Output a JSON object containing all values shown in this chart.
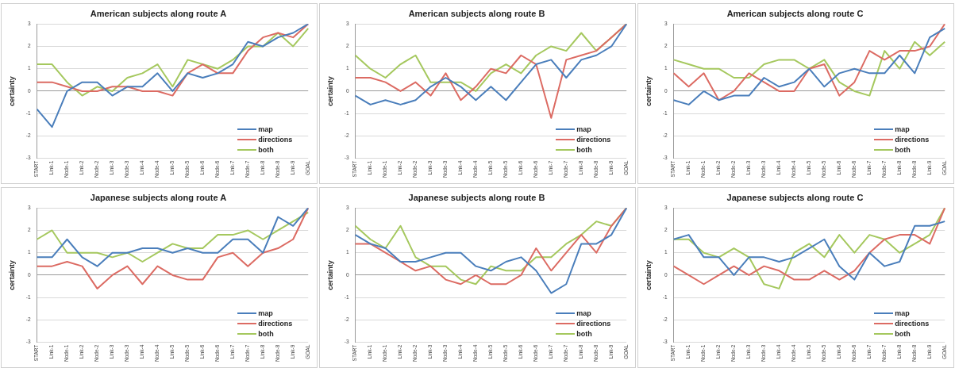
{
  "chart_data": [
    {
      "type": "line",
      "title": "American subjects along route A",
      "ylabel": "certainty",
      "categories": [
        "START",
        "Link-1",
        "Node-1",
        "Link-2",
        "Node-2",
        "Link-3",
        "Node-3",
        "Link-4",
        "Node-4",
        "Link-5",
        "Node-5",
        "Link-6",
        "Node-6",
        "Link-7",
        "Node-7",
        "Link-8",
        "Node-8",
        "Link-9",
        "GOAL"
      ],
      "ylim": [
        -3,
        3
      ],
      "yticks": [
        -3,
        -2,
        -1,
        0,
        1,
        2,
        3
      ],
      "grid": "y",
      "legend": "bottom right",
      "series": [
        {
          "name": "map",
          "color": "#4a7ebb",
          "values": [
            -0.8,
            -1.6,
            0,
            0.4,
            0.4,
            -0.2,
            0.2,
            0.2,
            0.8,
            0,
            0.8,
            0.6,
            0.8,
            1.2,
            2.2,
            2,
            2.4,
            2.6,
            3
          ]
        },
        {
          "name": "directions",
          "color": "#dc6b63",
          "values": [
            0.4,
            0.4,
            0.2,
            0,
            0,
            0.2,
            0.2,
            0,
            0,
            -0.2,
            0.8,
            1.2,
            0.8,
            0.8,
            1.8,
            2.4,
            2.6,
            2.4,
            3
          ]
        },
        {
          "name": "both",
          "color": "#a5c85e",
          "values": [
            1.2,
            1.2,
            0.4,
            -0.2,
            0.2,
            0,
            0.6,
            0.8,
            1.2,
            0.2,
            1.4,
            1.2,
            1,
            1.4,
            2,
            2,
            2.6,
            2,
            2.8
          ]
        }
      ]
    },
    {
      "type": "line",
      "title": "American subjects along route B",
      "ylabel": "certainty",
      "categories": [
        "START",
        "Link-1",
        "Node-1",
        "Link-2",
        "Node-2",
        "Link-3",
        "Node-3",
        "Link-4",
        "Node-4",
        "Link-5",
        "Node-5",
        "Link-6",
        "Node-6",
        "Link-7",
        "Node-7",
        "Link-8",
        "Node-8",
        "Link-9",
        "GOAL"
      ],
      "ylim": [
        -3,
        3
      ],
      "yticks": [
        -3,
        -2,
        -1,
        0,
        1,
        2,
        3
      ],
      "grid": "y",
      "legend": "bottom right",
      "series": [
        {
          "name": "map",
          "color": "#4a7ebb",
          "values": [
            -0.2,
            -0.6,
            -0.4,
            -0.6,
            -0.4,
            0.2,
            0.6,
            0.2,
            -0.4,
            0.2,
            -0.4,
            0.4,
            1.2,
            1.4,
            0.6,
            1.4,
            1.6,
            2,
            3
          ]
        },
        {
          "name": "directions",
          "color": "#dc6b63",
          "values": [
            0.6,
            0.6,
            0.4,
            0,
            0.4,
            -0.2,
            0.8,
            -0.4,
            0.2,
            1,
            0.8,
            1.6,
            1.2,
            -1.2,
            1.4,
            1.6,
            1.8,
            2.4,
            3
          ]
        },
        {
          "name": "both",
          "color": "#a5c85e",
          "values": [
            1.6,
            1,
            0.6,
            1.2,
            1.6,
            0.4,
            0.4,
            0.4,
            0,
            0.8,
            1.2,
            0.8,
            1.6,
            2,
            1.8,
            2.6,
            1.8,
            2.4,
            3
          ]
        }
      ]
    },
    {
      "type": "line",
      "title": "American subjects along route C",
      "ylabel": "certainty",
      "categories": [
        "START",
        "Link-1",
        "Node-1",
        "Link-2",
        "Node-2",
        "Link-3",
        "Node-3",
        "Link-4",
        "Node-4",
        "Link-5",
        "Node-5",
        "Link-6",
        "Node-6",
        "Link-7",
        "Node-7",
        "Link-8",
        "Node-8",
        "Link-9",
        "GOAL"
      ],
      "ylim": [
        -3,
        3
      ],
      "yticks": [
        -3,
        -2,
        -1,
        0,
        1,
        2,
        3
      ],
      "grid": "y",
      "legend": "bottom right",
      "series": [
        {
          "name": "map",
          "color": "#4a7ebb",
          "values": [
            -0.4,
            -0.6,
            0,
            -0.4,
            -0.2,
            -0.2,
            0.6,
            0.2,
            0.4,
            1,
            0.2,
            0.8,
            1,
            0.8,
            0.8,
            1.6,
            0.8,
            2.4,
            2.8
          ]
        },
        {
          "name": "directions",
          "color": "#dc6b63",
          "values": [
            0.8,
            0.2,
            0.8,
            -0.4,
            0,
            0.8,
            0.4,
            0,
            0,
            1,
            1.2,
            -0.2,
            0.4,
            1.8,
            1.4,
            1.8,
            1.8,
            2,
            3
          ]
        },
        {
          "name": "both",
          "color": "#a5c85e",
          "values": [
            1.4,
            1.2,
            1,
            1,
            0.6,
            0.6,
            1.2,
            1.4,
            1.4,
            1,
            1.4,
            0.4,
            0,
            -0.2,
            1.8,
            1,
            2.2,
            1.6,
            2.2
          ]
        }
      ]
    },
    {
      "type": "line",
      "title": "Japanese subjects along route A",
      "ylabel": "certainty",
      "categories": [
        "START",
        "Link-1",
        "Node-1",
        "Link-2",
        "Node-2",
        "Link-3",
        "Node-3",
        "Link-4",
        "Node-4",
        "Link-5",
        "Node-5",
        "Link-6",
        "Node-6",
        "Link-7",
        "Node-7",
        "Link-8",
        "Node-8",
        "Link-9",
        "GOAL"
      ],
      "ylim": [
        -3,
        3
      ],
      "yticks": [
        -3,
        -2,
        -1,
        0,
        1,
        2,
        3
      ],
      "grid": "y",
      "legend": "bottom right",
      "series": [
        {
          "name": "map",
          "color": "#4a7ebb",
          "values": [
            0.8,
            0.8,
            1.6,
            0.8,
            0.4,
            1,
            1,
            1.2,
            1.2,
            1,
            1.2,
            1,
            1,
            1.6,
            1.6,
            1,
            2.6,
            2.2,
            3
          ]
        },
        {
          "name": "directions",
          "color": "#dc6b63",
          "values": [
            0.4,
            0.4,
            0.6,
            0.4,
            -0.6,
            0,
            0.4,
            -0.4,
            0.4,
            0,
            -0.2,
            -0.2,
            0.8,
            1,
            0.4,
            1,
            1.2,
            1.6,
            3
          ]
        },
        {
          "name": "both",
          "color": "#a5c85e",
          "values": [
            1.6,
            2,
            1,
            1,
            1,
            0.8,
            1,
            0.6,
            1,
            1.4,
            1.2,
            1.2,
            1.8,
            1.8,
            2,
            1.6,
            2,
            2.4,
            2.8
          ]
        }
      ]
    },
    {
      "type": "line",
      "title": "Japanese subjects along route B",
      "ylabel": "certainty",
      "categories": [
        "START",
        "Link-1",
        "Node-1",
        "Link-2",
        "Node-2",
        "Link-3",
        "Node-3",
        "Link-4",
        "Node-4",
        "Link-5",
        "Node-5",
        "Link-6",
        "Node-6",
        "Link-7",
        "Node-7",
        "Link-8",
        "Node-8",
        "Link-9",
        "GOAL"
      ],
      "ylim": [
        -3,
        3
      ],
      "yticks": [
        -3,
        -2,
        -1,
        0,
        1,
        2,
        3
      ],
      "grid": "y",
      "legend": "bottom right",
      "series": [
        {
          "name": "map",
          "color": "#4a7ebb",
          "values": [
            1.8,
            1.4,
            1.2,
            0.6,
            0.6,
            0.8,
            1,
            1,
            0.4,
            0.2,
            0.6,
            0.8,
            0.2,
            -0.8,
            -0.4,
            1.4,
            1.4,
            1.8,
            3
          ]
        },
        {
          "name": "directions",
          "color": "#dc6b63",
          "values": [
            1.4,
            1.4,
            1,
            0.6,
            0.2,
            0.4,
            -0.2,
            -0.4,
            0,
            -0.4,
            -0.4,
            0,
            1.2,
            0.2,
            1,
            1.8,
            1,
            2.2,
            3
          ]
        },
        {
          "name": "both",
          "color": "#a5c85e",
          "values": [
            2.2,
            1.6,
            1.2,
            2.2,
            0.8,
            0.4,
            0.4,
            -0.2,
            -0.4,
            0.4,
            0.2,
            0.2,
            0.8,
            0.8,
            1.4,
            1.8,
            2.4,
            2.2,
            3
          ]
        }
      ]
    },
    {
      "type": "line",
      "title": "Japanese subjects along route C",
      "ylabel": "certainty",
      "categories": [
        "START",
        "Link-1",
        "Node-1",
        "Link-2",
        "Node-2",
        "Link-3",
        "Node-3",
        "Link-4",
        "Node-4",
        "Link-5",
        "Node-5",
        "Link-6",
        "Node-6",
        "Link-7",
        "Node-7",
        "Link-8",
        "Node-8",
        "Link-9",
        "GOAL"
      ],
      "ylim": [
        -3,
        3
      ],
      "yticks": [
        -3,
        -2,
        -1,
        0,
        1,
        2,
        3
      ],
      "grid": "y",
      "legend": "bottom right",
      "series": [
        {
          "name": "map",
          "color": "#4a7ebb",
          "values": [
            1.6,
            1.8,
            0.8,
            0.8,
            0,
            0.8,
            0.8,
            0.6,
            0.8,
            1.2,
            1.6,
            0.4,
            -0.2,
            1,
            0.4,
            0.6,
            2.2,
            2.2,
            2.4
          ]
        },
        {
          "name": "directions",
          "color": "#dc6b63",
          "values": [
            0.4,
            0,
            -0.4,
            0,
            0.4,
            0,
            0.4,
            0.2,
            -0.2,
            -0.2,
            0.2,
            -0.2,
            0.2,
            1,
            1.6,
            1.8,
            1.8,
            1.4,
            3
          ]
        },
        {
          "name": "both",
          "color": "#a5c85e",
          "values": [
            1.6,
            1.6,
            1,
            0.8,
            1.2,
            0.8,
            -0.4,
            -0.6,
            1,
            1.4,
            0.8,
            1.8,
            1,
            1.8,
            1.6,
            1,
            1.4,
            1.8,
            3
          ]
        }
      ]
    }
  ]
}
